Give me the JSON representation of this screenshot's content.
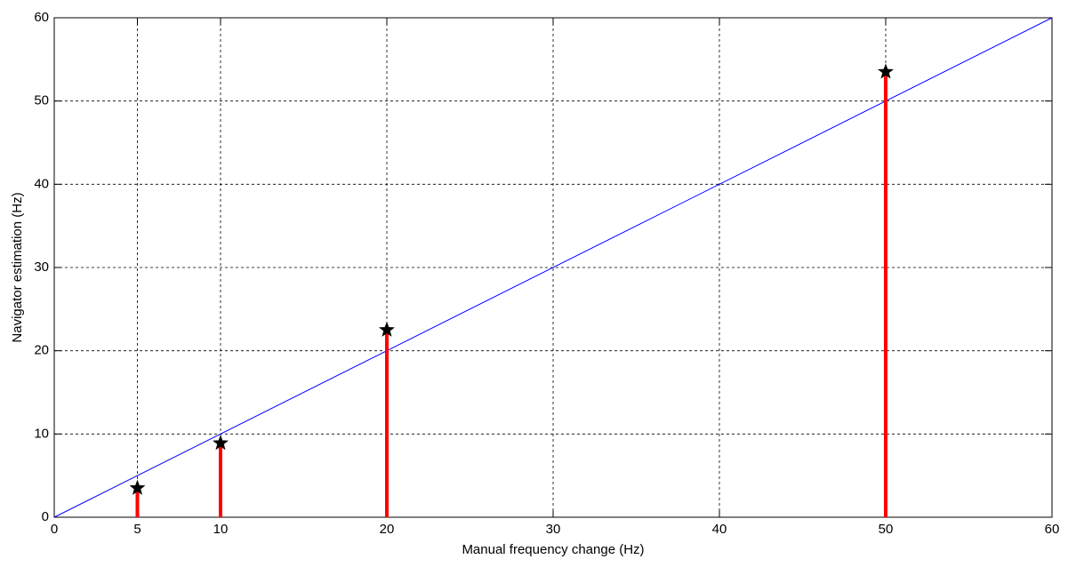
{
  "chart_data": {
    "type": "stem",
    "x_label": "Manual frequency change (Hz)",
    "y_label": "Navigator estimation (Hz)",
    "xlim": [
      0,
      60
    ],
    "xticks": [
      0,
      5,
      10,
      20,
      30,
      40,
      50,
      60
    ],
    "ylim": [
      0,
      60
    ],
    "yticks": [
      0,
      10,
      20,
      30,
      40,
      50,
      60
    ],
    "grid": true,
    "series": [
      {
        "type": "line",
        "color": "#0000ff",
        "x": [
          0,
          60
        ],
        "values": [
          0,
          60
        ]
      },
      {
        "type": "stem",
        "color": "#ff0000",
        "marker_color": "#000000",
        "x": [
          5,
          10,
          20,
          50
        ],
        "values": [
          3.5,
          8.9,
          22.5,
          53.5
        ]
      }
    ]
  }
}
